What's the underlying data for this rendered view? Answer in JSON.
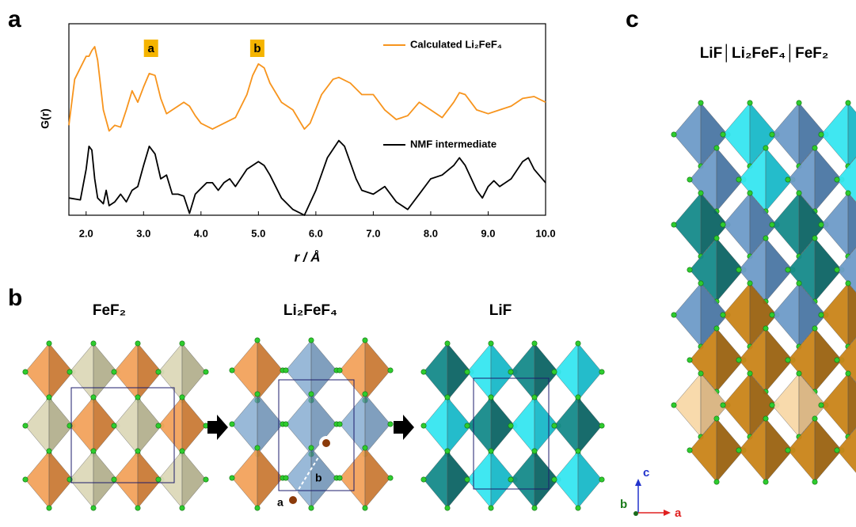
{
  "panel_labels": [
    "a",
    "b",
    "c"
  ],
  "chart_data": {
    "type": "line",
    "x_label": "r / Å",
    "y_label": "G(r)",
    "xlim": [
      1.7,
      10.0
    ],
    "ylim": [
      0,
      10
    ],
    "xticks": [
      {
        "value": 2,
        "label": "2.0"
      },
      {
        "value": 3,
        "label": "3.0"
      },
      {
        "value": 4,
        "label": "4.0"
      },
      {
        "value": 5,
        "label": "5.0"
      },
      {
        "value": 6,
        "label": "6.0"
      },
      {
        "value": 7,
        "label": "7.0"
      },
      {
        "value": 8,
        "label": "8.0"
      },
      {
        "value": 9,
        "label": "9.0"
      },
      {
        "value": 10,
        "label": "10.0"
      }
    ],
    "annotations": [
      {
        "text": "a",
        "x": 3.13
      },
      {
        "text": "b",
        "x": 4.98
      }
    ],
    "series": [
      {
        "name": "Calculated Li₂FeF₄",
        "color": "#f7941d",
        "x": [
          1.7,
          1.8,
          1.9,
          2.0,
          2.05,
          2.1,
          2.15,
          2.2,
          2.3,
          2.4,
          2.5,
          2.6,
          2.7,
          2.8,
          2.9,
          3.0,
          3.1,
          3.2,
          3.3,
          3.4,
          3.5,
          3.6,
          3.7,
          3.8,
          3.9,
          4.0,
          4.2,
          4.4,
          4.6,
          4.8,
          4.9,
          5.0,
          5.1,
          5.2,
          5.4,
          5.6,
          5.8,
          5.9,
          6.1,
          6.3,
          6.4,
          6.6,
          6.8,
          7.0,
          7.2,
          7.4,
          7.6,
          7.8,
          8.0,
          8.2,
          8.4,
          8.5,
          8.6,
          8.8,
          9.0,
          9.2,
          9.4,
          9.6,
          9.8,
          10.0
        ],
        "values": [
          4.7,
          7.1,
          7.7,
          8.3,
          8.3,
          8.6,
          8.8,
          8.1,
          5.5,
          4.4,
          4.7,
          4.6,
          5.5,
          6.5,
          5.9,
          6.7,
          7.4,
          7.3,
          6.1,
          5.3,
          5.5,
          5.7,
          5.9,
          5.7,
          5.2,
          4.8,
          4.5,
          4.8,
          5.1,
          6.3,
          7.3,
          7.9,
          7.7,
          6.9,
          5.9,
          5.5,
          4.5,
          4.8,
          6.3,
          7.1,
          7.2,
          6.9,
          6.3,
          6.3,
          5.5,
          5.0,
          5.2,
          5.9,
          5.5,
          5.1,
          5.9,
          6.4,
          6.3,
          5.5,
          5.3,
          5.5,
          5.7,
          6.1,
          6.2,
          5.9
        ]
      },
      {
        "name": "NMF intermediate",
        "color": "#000000",
        "x": [
          1.7,
          1.9,
          2.0,
          2.05,
          2.1,
          2.15,
          2.2,
          2.3,
          2.35,
          2.4,
          2.5,
          2.6,
          2.7,
          2.8,
          2.9,
          3.0,
          3.1,
          3.2,
          3.3,
          3.4,
          3.5,
          3.6,
          3.7,
          3.8,
          3.9,
          4.0,
          4.1,
          4.2,
          4.3,
          4.4,
          4.5,
          4.6,
          4.8,
          5.0,
          5.1,
          5.2,
          5.4,
          5.6,
          5.8,
          6.0,
          6.2,
          6.4,
          6.5,
          6.7,
          6.8,
          7.0,
          7.2,
          7.4,
          7.6,
          7.8,
          8.0,
          8.2,
          8.4,
          8.5,
          8.6,
          8.8,
          8.9,
          9.0,
          9.1,
          9.2,
          9.4,
          9.6,
          9.7,
          9.8,
          10.0
        ],
        "values": [
          0.9,
          0.8,
          2.4,
          3.6,
          3.4,
          1.9,
          0.9,
          0.6,
          1.3,
          0.5,
          0.7,
          1.1,
          0.7,
          1.3,
          1.5,
          2.6,
          3.6,
          3.2,
          1.9,
          2.1,
          1.1,
          1.1,
          1.0,
          0.1,
          1.1,
          1.4,
          1.7,
          1.7,
          1.3,
          1.7,
          1.9,
          1.5,
          2.4,
          2.8,
          2.6,
          2.1,
          0.9,
          0.3,
          0.0,
          1.3,
          3.0,
          3.9,
          3.6,
          1.9,
          1.3,
          1.1,
          1.5,
          0.7,
          0.3,
          1.1,
          1.9,
          2.1,
          2.6,
          3.0,
          2.6,
          1.3,
          0.9,
          1.5,
          1.8,
          1.5,
          1.9,
          2.8,
          3.0,
          2.4,
          1.7
        ]
      }
    ]
  },
  "structures": {
    "titles": [
      "FeF₂",
      "Li₂FeF₄",
      "LiF"
    ],
    "markers": [
      "a",
      "b"
    ],
    "stack_title": "LiF│Li₂FeF₄│FeF₂",
    "axes": [
      "c",
      "b",
      "a"
    ]
  }
}
